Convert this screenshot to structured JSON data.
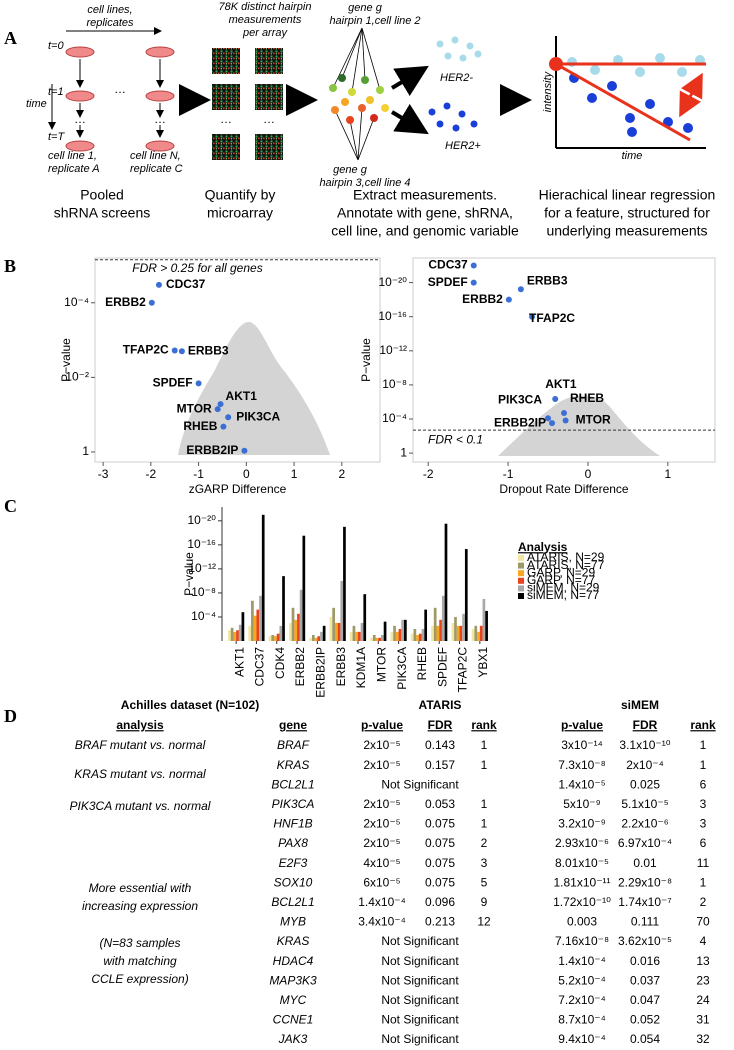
{
  "panel_labels": [
    "A",
    "B",
    "C",
    "D"
  ],
  "panel_a": {
    "cell_lines": [
      "cell lines,",
      "replicates"
    ],
    "timepoints": [
      "t=0",
      "t=1",
      "t=T"
    ],
    "time": "time",
    "col1": [
      "cell line 1,",
      "replicate A"
    ],
    "colN": [
      "cell line N,",
      "replicate C"
    ],
    "array_note": [
      "78K distinct hairpin",
      "measurements",
      "per array"
    ],
    "hairpin_top": [
      "gene g",
      "hairpin 1,cell line 2"
    ],
    "hairpin_bottom": [
      "gene g",
      "hairpin 3,cell line 4"
    ],
    "her2_neg": "HER2-",
    "her2_pos": "HER2+",
    "plot_y": "intensity",
    "plot_x": "time",
    "captions": [
      [
        "Pooled",
        "shRNA screens"
      ],
      [
        "Quantify by",
        "microarray"
      ],
      [
        "Extract measurements.",
        "Annotate with gene, shRNA,",
        "cell line, and genomic variable"
      ],
      [
        "Hierachical linear regression",
        "for a feature, structured for",
        "underlying measurements"
      ]
    ]
  },
  "chart_data": [
    {
      "type": "scatter",
      "x_label": "zGARP Difference",
      "y_label": "P−value",
      "annotation": "FDR > 0.25 for all genes",
      "threshold": 7e-06,
      "color": "#3b6fd4",
      "log_y": true,
      "point_labels": [
        "CDC37",
        "ERBB2",
        "TFAP2C",
        "ERBB3",
        "SPDEF",
        "AKT1",
        "MTOR",
        "PIK3CA",
        "RHEB",
        "ERBB2IP"
      ],
      "x": [
        -1.83,
        -1.98,
        -1.5,
        -1.35,
        -1.0,
        -0.54,
        -0.6,
        -0.38,
        -0.48,
        -0.04
      ],
      "y": [
        3.3e-05,
        0.0001,
        0.0019,
        0.002,
        0.0145,
        0.052,
        0.071,
        0.117,
        0.21,
        0.93
      ],
      "xlim": [
        -3.17,
        2.8
      ],
      "xticks": [
        -3,
        -2,
        -1,
        0,
        1,
        2
      ],
      "ylim": [
        1.86,
        6.3e-06
      ],
      "yticks": [
        {
          "value": 0.0001,
          "label": "10⁻⁴"
        },
        {
          "value": 0.01,
          "label": "10⁻²"
        },
        1
      ]
    },
    {
      "type": "scatter",
      "x_label": "Dropout Rate Difference",
      "y_label": "P−value",
      "annotation": "FDR < 0.1",
      "threshold": 0.002,
      "color": "#3b6fd4",
      "log_y": true,
      "point_labels": [
        "CDC37",
        "SPDEF",
        "ERBB3",
        "ERBB2",
        "TFAP2C",
        "AKT1",
        "PIK3CA",
        "RHEB",
        "ERBB2IP",
        "MTOR"
      ],
      "x": [
        -1.43,
        -1.43,
        -0.84,
        -0.99,
        -0.7,
        -0.41,
        -0.5,
        -0.3,
        -0.45,
        -0.28
      ],
      "y": [
        1e-22,
        1e-20,
        6e-20,
        1e-18,
        1e-16,
        4.5e-07,
        8e-05,
        2e-05,
        0.0003,
        0.00015
      ],
      "xlim": [
        -2.19,
        1.59
      ],
      "xticks": [
        -2,
        -1,
        0,
        1
      ],
      "ylim": [
        11,
        1.3e-23
      ],
      "yticks": [
        {
          "value": 1e-20,
          "label": "10⁻²⁰"
        },
        {
          "value": 1e-16,
          "label": "10⁻¹⁶"
        },
        {
          "value": 1e-12,
          "label": "10⁻¹²"
        },
        {
          "value": 1e-08,
          "label": "10⁻⁸"
        },
        {
          "value": 0.0001,
          "label": "10⁻⁴"
        },
        1
      ]
    },
    {
      "type": "bar",
      "y_label": "P−value",
      "legend_title": "Analysis",
      "log_y": true,
      "categories": [
        "AKT1",
        "CDC37",
        "CDK4",
        "ERBB2",
        "ERBB2IP",
        "ERBB3",
        "KDM1A",
        "MTOR",
        "PIK3CA",
        "RHEB",
        "SPDEF",
        "TFAP2C",
        "YBX1"
      ],
      "series": [
        {
          "name": "ATARIS, N=29",
          "color": "#f2e6a0",
          "values": [
            0.016,
            0.003,
            0.15,
            0.001,
            0.3,
            0.0001,
            0.03,
            0.3,
            0.03,
            0.06,
            0.003,
            0.001,
            0.01
          ]
        },
        {
          "name": "ATARIS, N=77",
          "color": "#9d9a68",
          "values": [
            0.0063,
            2e-07,
            0.1,
            3e-06,
            0.1,
            3e-06,
            0.003,
            0.1,
            0.003,
            0.01,
            3e-06,
            0.0001,
            0.003
          ]
        },
        {
          "name": "GARP, N=29",
          "color": "#f5a623",
          "values": [
            0.032,
            6e-05,
            0.15,
            0.0003,
            0.3,
            0.001,
            0.03,
            0.3,
            0.03,
            0.1,
            0.003,
            0.003,
            0.03
          ]
        },
        {
          "name": "GARP, N=77",
          "color": "#e8431c",
          "values": [
            0.016,
            6e-06,
            0.06,
            3e-05,
            0.16,
            0.001,
            0.03,
            0.3,
            0.01,
            0.06,
            0.0003,
            0.003,
            0.003
          ]
        },
        {
          "name": "siMEM, N=29",
          "color": "#a8a8a8",
          "values": [
            0.002,
            3e-08,
            0.003,
            3e-09,
            0.03,
            1e-10,
            0.001,
            0.1,
            0.0003,
            0.01,
            3e-08,
            3e-05,
            1e-07
          ]
        },
        {
          "name": "siMEM, N=77",
          "color": "#000000",
          "values": [
            1.6e-05,
            1e-21,
            1.6e-11,
            3e-18,
            0.003,
            1e-19,
            1.6e-08,
            0.0006,
            0.0003,
            6e-06,
            3e-20,
            5e-16,
            1e-05
          ]
        }
      ],
      "ylim": [
        1,
        5e-23
      ],
      "yticks": [
        {
          "value": 1e-20,
          "label": "10⁻²⁰"
        },
        {
          "value": 1e-16,
          "label": "10⁻¹⁶"
        },
        {
          "value": 1e-12,
          "label": "10⁻¹²"
        },
        {
          "value": 1e-08,
          "label": "10⁻⁸"
        },
        {
          "value": 0.0001,
          "label": "10⁻⁴"
        }
      ]
    }
  ],
  "table": {
    "title": "Achilles dataset (N=102)",
    "groups": [
      "ATARIS",
      "siMEM"
    ],
    "columns": [
      "analysis",
      "gene",
      "p-value",
      "FDR",
      "rank",
      "p-value",
      "FDR",
      "rank"
    ],
    "analyses": [
      [
        "BRAF mutant vs. normal"
      ],
      [
        "KRAS mutant vs. normal"
      ],
      [
        "PIK3CA mutant vs. normal"
      ],
      [
        "More essential with",
        "increasing expression"
      ],
      [
        "(N=83 samples",
        "with matching",
        "CCLE expression)"
      ]
    ],
    "rows": [
      [
        "BRAF",
        "2x10⁻⁵",
        0.143,
        1,
        "3x10⁻¹⁴",
        "3.1x10⁻¹⁰",
        1
      ],
      [
        "KRAS",
        "2x10⁻⁵",
        0.157,
        1,
        "7.3x10⁻⁸",
        "2x10⁻⁴",
        1
      ],
      [
        "BCL2L1",
        "Not Significant",
        "1.4x10⁻⁵",
        0.025,
        6
      ],
      [
        "PIK3CA",
        "2x10⁻⁵",
        0.053,
        1,
        "5x10⁻⁹",
        "5.1x10⁻⁵",
        3
      ],
      [
        "HNF1B",
        "2x10⁻⁵",
        0.075,
        1,
        "3.2x10⁻⁹",
        "2.2x10⁻⁶",
        3
      ],
      [
        "PAX8",
        "2x10⁻⁵",
        0.075,
        2,
        "2.93x10⁻⁶",
        "6.97x10⁻⁴",
        6
      ],
      [
        "E2F3",
        "4x10⁻⁵",
        0.075,
        3,
        "8.01x10⁻⁵",
        0.01,
        11
      ],
      [
        "SOX10",
        "6x10⁻⁵",
        0.075,
        5,
        "1.81x10⁻¹¹",
        "2.29x10⁻⁸",
        1
      ],
      [
        "BCL2L1",
        "1.4x10⁻⁴",
        0.096,
        9,
        "1.72x10⁻¹⁰",
        "1.74x10⁻⁷",
        2
      ],
      [
        "MYB",
        "3.4x10⁻⁴",
        0.213,
        12,
        0.003,
        0.111,
        70
      ],
      [
        "KRAS",
        "Not Significant",
        "7.16x10⁻⁸",
        "3.62x10⁻⁵",
        4
      ],
      [
        "HDAC4",
        "Not Significant",
        "1.4x10⁻⁴",
        0.016,
        13
      ],
      [
        "MAP3K3",
        "Not Significant",
        "5.2x10⁻⁴",
        0.037,
        23
      ],
      [
        "MYC",
        "Not Significant",
        "7.2x10⁻⁴",
        0.047,
        24
      ],
      [
        "CCNE1",
        "Not Significant",
        "8.7x10⁻⁴",
        0.052,
        31
      ],
      [
        "JAK3",
        "Not Significant",
        "9.4x10⁻⁴",
        0.054,
        32
      ]
    ]
  }
}
